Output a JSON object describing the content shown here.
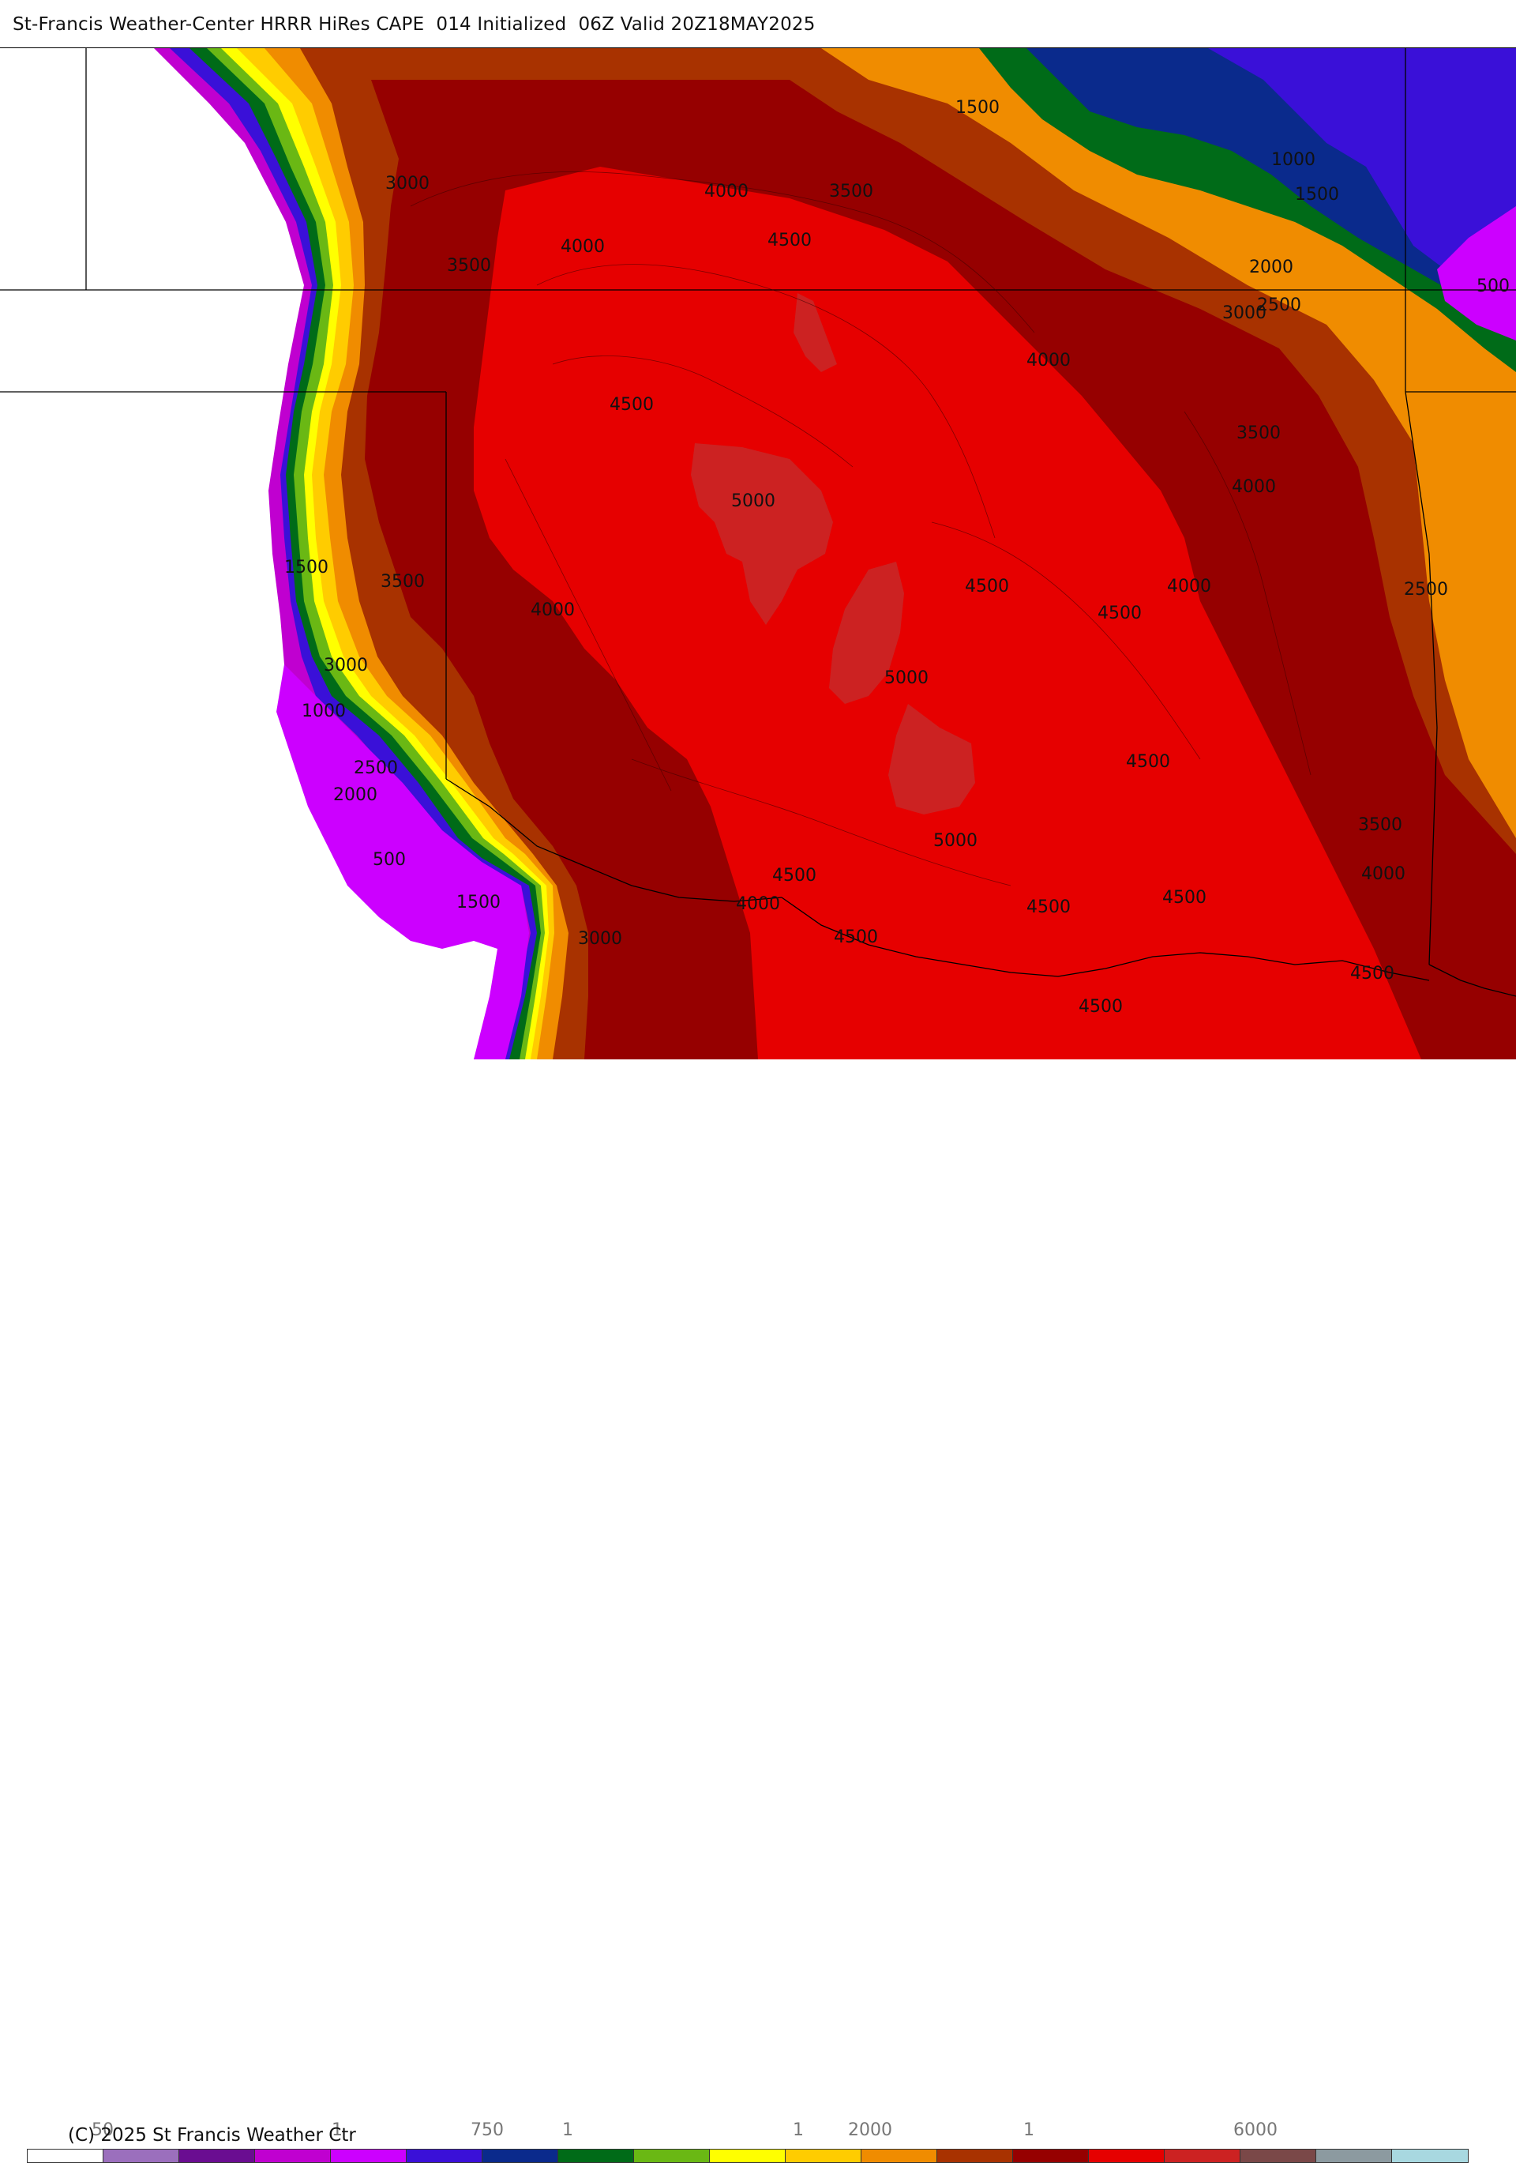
{
  "header": {
    "title": "St-Francis Weather-Center HRRR HiRes CAPE  014 Initialized  06Z Valid 20Z18MAY2025"
  },
  "map": {
    "field": "CAPE",
    "contour_labels": [
      {
        "text": "3000"
      },
      {
        "text": "3500"
      },
      {
        "text": "4000"
      },
      {
        "text": "4000"
      },
      {
        "text": "3500"
      },
      {
        "text": "4500"
      },
      {
        "text": "1500"
      },
      {
        "text": "1000"
      },
      {
        "text": "1500"
      },
      {
        "text": "500"
      },
      {
        "text": "2000"
      },
      {
        "text": "2500"
      },
      {
        "text": "3000"
      },
      {
        "text": "4000"
      },
      {
        "text": "4500"
      },
      {
        "text": "3500"
      },
      {
        "text": "4000"
      },
      {
        "text": "5000"
      },
      {
        "text": "1500"
      },
      {
        "text": "3500"
      },
      {
        "text": "4000"
      },
      {
        "text": "4500"
      },
      {
        "text": "4500"
      },
      {
        "text": "4000"
      },
      {
        "text": "2500"
      },
      {
        "text": "3000"
      },
      {
        "text": "5000"
      },
      {
        "text": "1000"
      },
      {
        "text": "2500"
      },
      {
        "text": "2000"
      },
      {
        "text": "4500"
      },
      {
        "text": "3500"
      },
      {
        "text": "500"
      },
      {
        "text": "5000"
      },
      {
        "text": "4000"
      },
      {
        "text": "1500"
      },
      {
        "text": "4500"
      },
      {
        "text": "4000"
      },
      {
        "text": "4500"
      },
      {
        "text": "4500"
      },
      {
        "text": "3000"
      },
      {
        "text": "4500"
      },
      {
        "text": "4500"
      },
      {
        "text": "4500"
      }
    ]
  },
  "footer": {
    "copyright": "(C) 2025 St Francis Weather Ctr",
    "tick_labels": [
      "50",
      "1",
      "750",
      "1",
      "1",
      "2000",
      "1",
      "6000"
    ]
  },
  "colorbar": {
    "colors": [
      "#ffffff",
      "#9b6fbd",
      "#6a0d91",
      "#c000d0",
      "#cc00ff",
      "#3a10d8",
      "#0a2a8c",
      "#006b18",
      "#6ab814",
      "#ffff00",
      "#ffcc00",
      "#f08c00",
      "#a83200",
      "#960000",
      "#e60000",
      "#cc2222",
      "#7a4848",
      "#8c9aa0",
      "#a8d8e0"
    ]
  }
}
